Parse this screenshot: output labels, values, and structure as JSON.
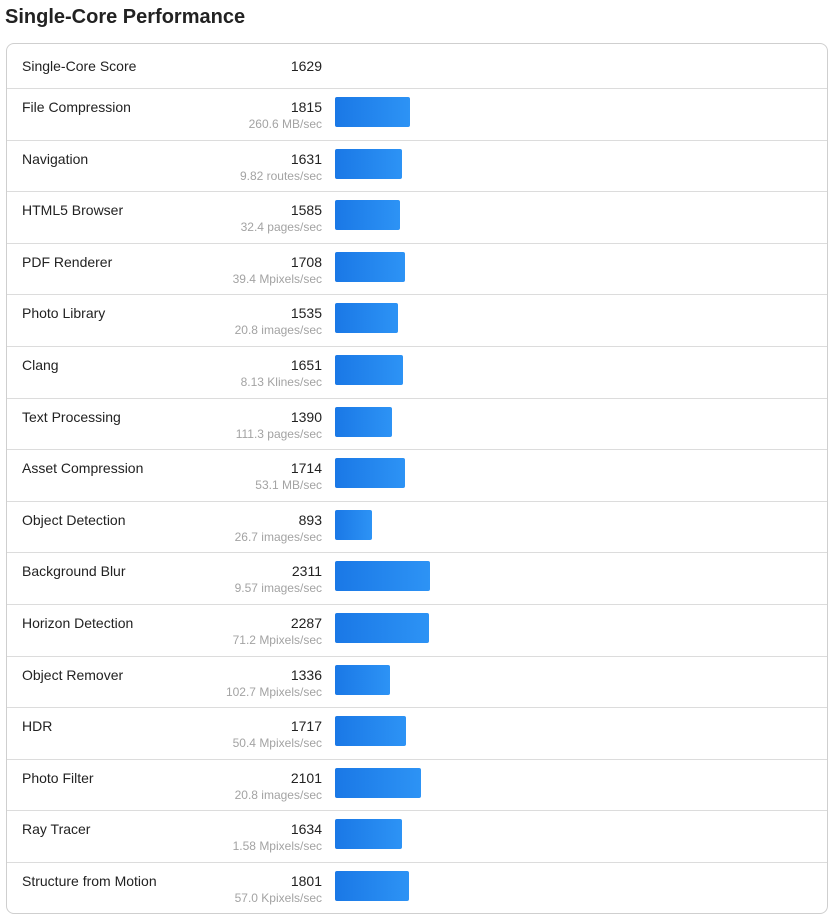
{
  "title": "Single-Core Performance",
  "colors": {
    "bar": "#1e85ee"
  },
  "overall": {
    "label": "Single-Core Score",
    "score": "1629"
  },
  "max_score": 2311,
  "tests": [
    {
      "name": "File Compression",
      "score": 1815,
      "rate": "260.6 MB/sec"
    },
    {
      "name": "Navigation",
      "score": 1631,
      "rate": "9.82 routes/sec"
    },
    {
      "name": "HTML5 Browser",
      "score": 1585,
      "rate": "32.4 pages/sec"
    },
    {
      "name": "PDF Renderer",
      "score": 1708,
      "rate": "39.4 Mpixels/sec"
    },
    {
      "name": "Photo Library",
      "score": 1535,
      "rate": "20.8 images/sec"
    },
    {
      "name": "Clang",
      "score": 1651,
      "rate": "8.13 Klines/sec"
    },
    {
      "name": "Text Processing",
      "score": 1390,
      "rate": "111.3 pages/sec"
    },
    {
      "name": "Asset Compression",
      "score": 1714,
      "rate": "53.1 MB/sec"
    },
    {
      "name": "Object Detection",
      "score": 893,
      "rate": "26.7 images/sec"
    },
    {
      "name": "Background Blur",
      "score": 2311,
      "rate": "9.57 images/sec"
    },
    {
      "name": "Horizon Detection",
      "score": 2287,
      "rate": "71.2 Mpixels/sec"
    },
    {
      "name": "Object Remover",
      "score": 1336,
      "rate": "102.7 Mpixels/sec"
    },
    {
      "name": "HDR",
      "score": 1717,
      "rate": "50.4 Mpixels/sec"
    },
    {
      "name": "Photo Filter",
      "score": 2101,
      "rate": "20.8 images/sec"
    },
    {
      "name": "Ray Tracer",
      "score": 1634,
      "rate": "1.58 Mpixels/sec"
    },
    {
      "name": "Structure from Motion",
      "score": 1801,
      "rate": "57.0 Kpixels/sec"
    }
  ]
}
